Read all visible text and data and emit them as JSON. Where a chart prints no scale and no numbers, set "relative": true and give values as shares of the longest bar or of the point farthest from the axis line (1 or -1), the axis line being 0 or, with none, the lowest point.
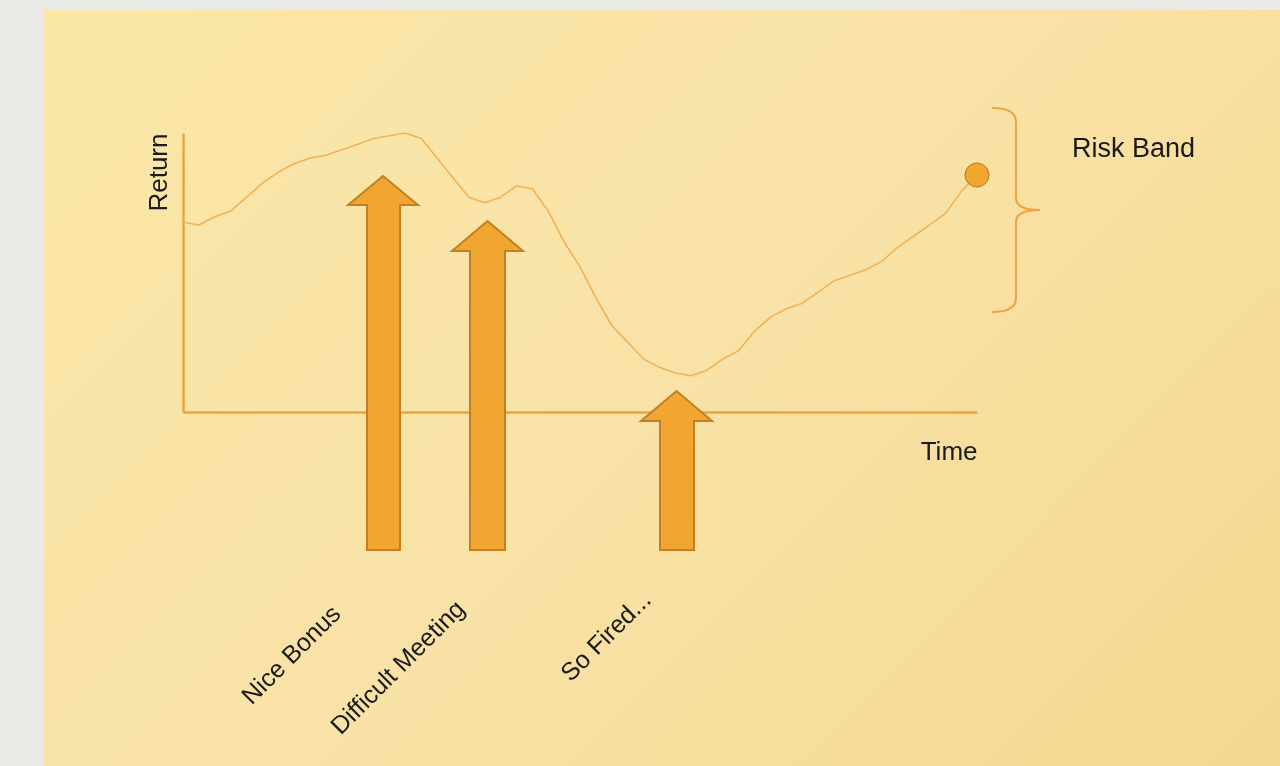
{
  "chart_data": {
    "type": "line",
    "relative": true,
    "xlabel": "Time",
    "ylabel": "Return",
    "categories": [
      null,
      null,
      null,
      null,
      null,
      null,
      null,
      null,
      null,
      null,
      null,
      null,
      null,
      null,
      null,
      null,
      null,
      null,
      null,
      null,
      null,
      null,
      null,
      null,
      null,
      null,
      null,
      null,
      null,
      null,
      null,
      null,
      null,
      null,
      null,
      null,
      null,
      null,
      null,
      null,
      null,
      null,
      null,
      null,
      null,
      null,
      null,
      null,
      null,
      null,
      null
    ],
    "series": [
      {
        "color": "#f2b257",
        "values": [
          0.68,
          0.67,
          0.7,
          0.72,
          0.77,
          0.82,
          0.86,
          0.89,
          0.91,
          0.92,
          0.94,
          0.96,
          0.98,
          0.99,
          1.0,
          0.98,
          0.91,
          0.84,
          0.77,
          0.75,
          0.77,
          0.81,
          0.8,
          0.72,
          0.61,
          0.52,
          0.41,
          0.31,
          0.25,
          0.19,
          0.16,
          0.14,
          0.13,
          0.15,
          0.19,
          0.22,
          0.29,
          0.34,
          0.37,
          0.39,
          0.43,
          0.47,
          0.49,
          0.51,
          0.54,
          0.59,
          0.63,
          0.67,
          0.71,
          0.79,
          0.85
        ]
      }
    ],
    "annotations": [
      "Nice Bonus",
      "Difficult Meeting",
      "So Fired...",
      "Risk Band"
    ]
  }
}
